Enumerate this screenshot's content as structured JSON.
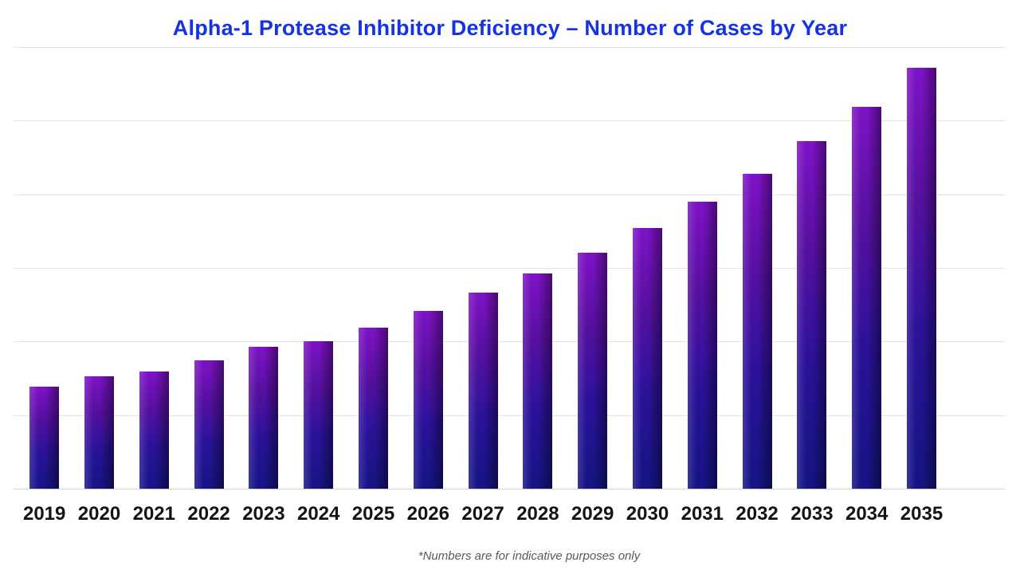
{
  "title": "Alpha-1 Protease Inhibitor Deficiency – Number of Cases by Year",
  "footnote": "*Numbers are for indicative purposes only",
  "colors": {
    "title": "#1533e2",
    "label": "#141414",
    "footnote": "#595959",
    "gridline": "#e3e3e3",
    "baseline": "#d5d5d5",
    "bar_gradient_top": "#7e12c6",
    "bar_gradient_upper_mid": "#55109f",
    "bar_gradient_lower_mid": "#2e129e",
    "bar_gradient_bottom": "#1c1cb2"
  },
  "chart_data": {
    "type": "bar",
    "title": "Alpha-1 Protease Inhibitor Deficiency – Number of Cases by Year",
    "categories": [
      "2019",
      "2020",
      "2021",
      "2022",
      "2023",
      "2024",
      "2025",
      "2026",
      "2027",
      "2028",
      "2029",
      "2030",
      "2031",
      "2032",
      "2033",
      "2034",
      "2035"
    ],
    "values": [
      1.39,
      1.53,
      1.59,
      1.74,
      1.93,
      2.0,
      2.19,
      2.41,
      2.66,
      2.92,
      3.21,
      3.54,
      3.9,
      4.28,
      4.72,
      5.19,
      5.72
    ],
    "xlabel": "",
    "ylabel": "",
    "ylim": [
      0,
      6
    ],
    "y_tick_labels": [],
    "grid": "horizontal, 7 evenly spaced lines including baseline",
    "legend": "none",
    "value_note": "y-axis has no numeric labels; values estimated in gridline units (1 unit = one gridline interval)"
  }
}
